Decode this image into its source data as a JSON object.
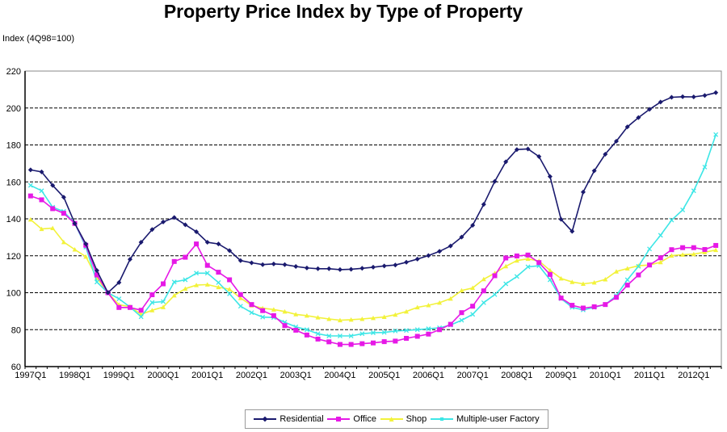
{
  "chart_data": {
    "type": "line",
    "title": "Property Price Index by Type of Property",
    "ylabel": "Index (4Q98=100)",
    "xlabel": "",
    "ylim": [
      60,
      220
    ],
    "yticks": [
      60,
      80,
      100,
      120,
      140,
      160,
      180,
      200,
      220
    ],
    "grid": "horizontal-dashed",
    "legend_position": "bottom",
    "x_tick_labels": [
      "1997Q1",
      "1998Q1",
      "1999Q1",
      "2000Q1",
      "2001Q1",
      "2002Q1",
      "2003Q1",
      "2004Q1",
      "2005Q1",
      "2006Q1",
      "2007Q1",
      "2008Q1",
      "2009Q1",
      "2010Q1",
      "2011Q1",
      "2012Q1"
    ],
    "x": [
      "1997Q1",
      "1997Q2",
      "1997Q3",
      "1997Q4",
      "1998Q1",
      "1998Q2",
      "1998Q3",
      "1998Q4",
      "1999Q1",
      "1999Q2",
      "1999Q3",
      "1999Q4",
      "2000Q1",
      "2000Q2",
      "2000Q3",
      "2000Q4",
      "2001Q1",
      "2001Q2",
      "2001Q3",
      "2001Q4",
      "2002Q1",
      "2002Q2",
      "2002Q3",
      "2002Q4",
      "2003Q1",
      "2003Q2",
      "2003Q3",
      "2003Q4",
      "2004Q1",
      "2004Q2",
      "2004Q3",
      "2004Q4",
      "2005Q1",
      "2005Q2",
      "2005Q3",
      "2005Q4",
      "2006Q1",
      "2006Q2",
      "2006Q3",
      "2006Q4",
      "2007Q1",
      "2007Q2",
      "2007Q3",
      "2007Q4",
      "2008Q1",
      "2008Q2",
      "2008Q3",
      "2008Q4",
      "2009Q1",
      "2009Q2",
      "2009Q3",
      "2009Q4",
      "2010Q1",
      "2010Q2",
      "2010Q3",
      "2010Q4",
      "2011Q1",
      "2011Q2",
      "2011Q3",
      "2011Q4",
      "2012Q1",
      "2012Q2",
      "2012Q3"
    ],
    "series": [
      {
        "name": "Residential",
        "color": "#1a1a6e",
        "marker": "diamond",
        "values": [
          166.5,
          165.4,
          158.1,
          151.7,
          137.5,
          126.4,
          112,
          100,
          105.5,
          118.1,
          127.3,
          134.2,
          138.3,
          140.7,
          136.8,
          133,
          127.3,
          126.4,
          122.8,
          117.4,
          116.2,
          115.2,
          115.6,
          115.2,
          114.2,
          113.4,
          113,
          113,
          112.5,
          112.7,
          113.2,
          113.8,
          114.5,
          115,
          116.5,
          118.2,
          120.1,
          122.4,
          125.3,
          130.1,
          136.5,
          147.8,
          160.3,
          170.9,
          177.5,
          177.8,
          173.7,
          162.9,
          139.7,
          133.2,
          154.5,
          166,
          175,
          182,
          189.8,
          194.8,
          199.3,
          203.2,
          205.8,
          206.1,
          206,
          206.8,
          208.3
        ]
      },
      {
        "name": "Office",
        "color": "#e619e6",
        "marker": "square",
        "values": [
          152.4,
          150.3,
          145.5,
          143,
          137.5,
          125.7,
          109.6,
          100,
          92,
          92,
          90.5,
          98.9,
          104.8,
          116.9,
          119.2,
          126.4,
          114.8,
          111.1,
          107,
          99,
          93.6,
          90.3,
          87.6,
          82.2,
          79.7,
          77.1,
          74.9,
          73.4,
          72,
          72,
          72.4,
          72.8,
          73.5,
          73.8,
          75.3,
          76.4,
          77.6,
          80,
          82.9,
          89.2,
          92.7,
          101,
          109.2,
          118.8,
          119.9,
          120.4,
          116.3,
          109.9,
          97.1,
          93.2,
          91.7,
          92.4,
          93.6,
          97.5,
          104.1,
          109.6,
          115,
          118.9,
          123.3,
          124.4,
          124.4,
          123.4,
          125.6
        ]
      },
      {
        "name": "Shop",
        "color": "#f2f23a",
        "marker": "triangle",
        "values": [
          139.6,
          134.5,
          135,
          127.4,
          123.4,
          119.5,
          108,
          100,
          93.5,
          92.5,
          88.3,
          90.5,
          92.2,
          98.5,
          102.2,
          104.1,
          104.4,
          103,
          101.9,
          97.1,
          93.1,
          91.6,
          90.9,
          89.8,
          88.3,
          87.6,
          86.6,
          85.8,
          85.1,
          85.4,
          85.8,
          86.3,
          86.9,
          88.1,
          89.8,
          92.1,
          93.2,
          94.6,
          96.8,
          101.2,
          102.6,
          107.3,
          110.6,
          114.3,
          117.4,
          118.3,
          117.2,
          112.1,
          107.7,
          105.8,
          104.8,
          105.5,
          107.2,
          111.5,
          113.1,
          114.6,
          115,
          116.5,
          120.1,
          120.6,
          120.9,
          121.9,
          123.1
        ]
      },
      {
        "name": "Multiple-user Factory",
        "color": "#3de6e6",
        "marker": "x",
        "values": [
          158.1,
          155.2,
          146.3,
          144,
          137.5,
          124.7,
          105.8,
          100,
          96.7,
          92.2,
          87,
          94.7,
          95.2,
          105.8,
          107,
          110.6,
          110.6,
          105.5,
          99.4,
          92.7,
          89.2,
          86.8,
          86.6,
          84,
          81.5,
          80,
          77.8,
          76.6,
          76.6,
          76.6,
          77.8,
          78.3,
          78.5,
          79.3,
          79.6,
          80,
          80.5,
          81,
          82.5,
          85.1,
          88.3,
          94.6,
          99,
          104.8,
          108.8,
          114,
          114.6,
          107,
          96.8,
          92.1,
          90.7,
          92.1,
          93.6,
          98.4,
          107,
          114.3,
          123.7,
          131.1,
          139.3,
          144.8,
          155.2,
          168,
          185.6
        ]
      }
    ]
  }
}
